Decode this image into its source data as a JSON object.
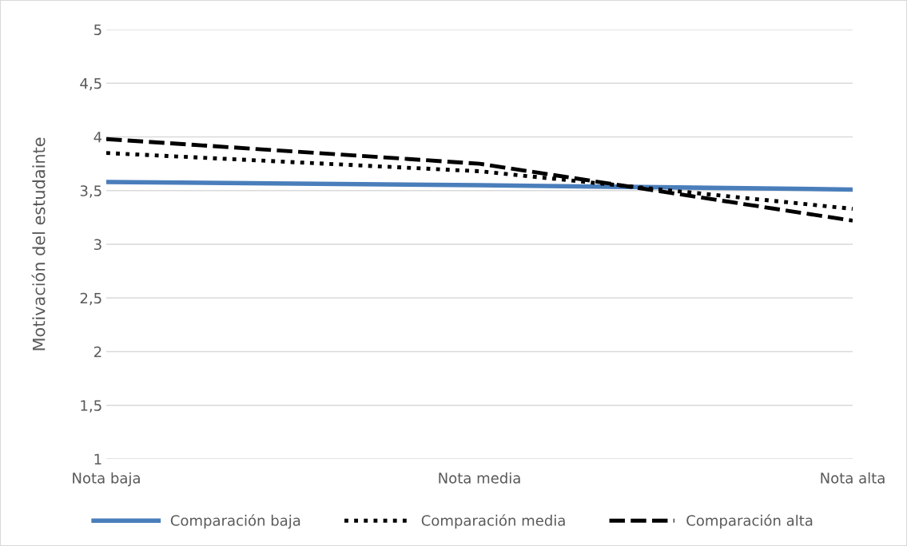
{
  "chart_data": {
    "type": "line",
    "ylabel": "Motivación del estudainte",
    "categories": [
      "Nota baja",
      "Nota media",
      "Nota alta"
    ],
    "series": [
      {
        "name": "Comparación baja",
        "color": "#4a7ebb",
        "line_style": "solid",
        "values": [
          3.58,
          3.55,
          3.51
        ]
      },
      {
        "name": "Comparación media",
        "color": "#000000",
        "line_style": "dotted",
        "values": [
          3.85,
          3.68,
          3.33
        ]
      },
      {
        "name": "Comparación alta",
        "color": "#000000",
        "line_style": "dashed",
        "values": [
          3.98,
          3.75,
          3.22
        ]
      }
    ],
    "ylim": [
      1,
      5
    ],
    "yticks": [
      {
        "value": 1,
        "label": "1"
      },
      {
        "value": 1.5,
        "label": "1,5"
      },
      {
        "value": 2,
        "label": "2"
      },
      {
        "value": 2.5,
        "label": "2,5"
      },
      {
        "value": 3,
        "label": "3"
      },
      {
        "value": 3.5,
        "label": "3,5"
      },
      {
        "value": 4,
        "label": "4"
      },
      {
        "value": 4.5,
        "label": "4,5"
      },
      {
        "value": 5,
        "label": "5"
      }
    ],
    "grid": "y",
    "legend": "bottom",
    "marker": "none"
  }
}
